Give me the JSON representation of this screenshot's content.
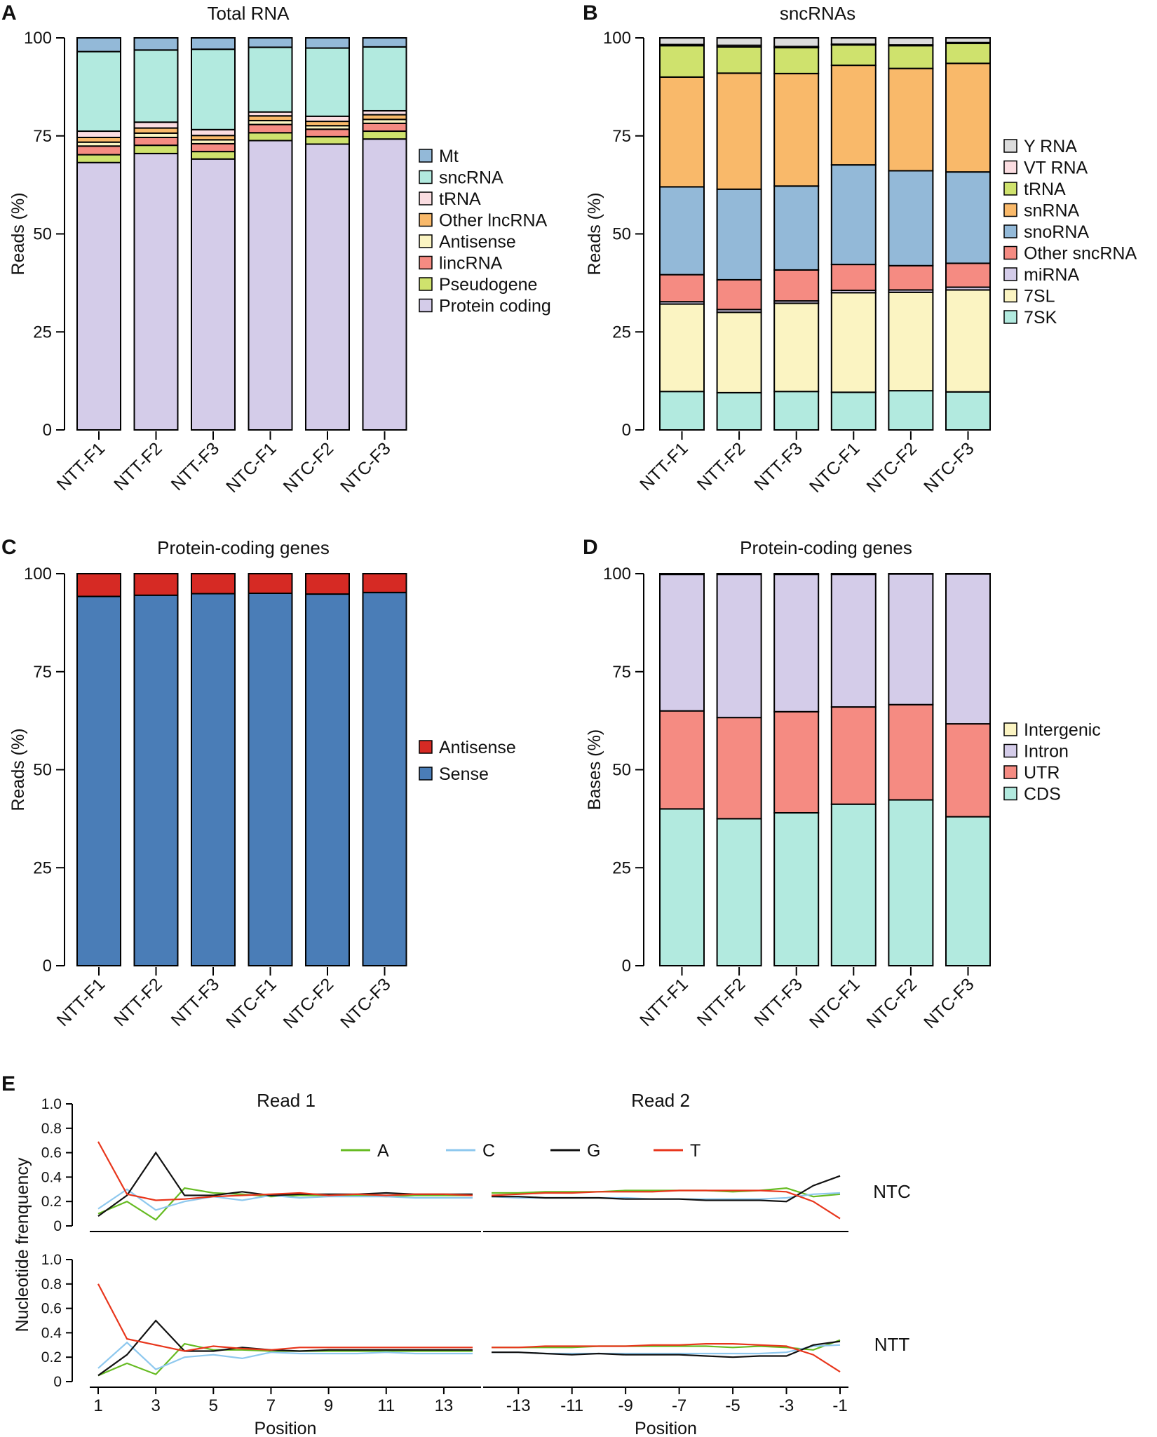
{
  "panels": [
    {
      "letter": "A",
      "chart_data": {
        "type": "bar",
        "stacked": true,
        "title": "Total RNA",
        "ylabel": "Reads (%)",
        "ylim": [
          0,
          100
        ],
        "yticks": [
          0,
          25,
          50,
          75,
          100
        ],
        "categories": [
          "NTT-F1",
          "NTT-F2",
          "NTT-F3",
          "NTC-F1",
          "NTC-F2",
          "NTC-F3"
        ],
        "legend_order": [
          "Mt",
          "sncRNA",
          "tRNA",
          "Other lncRNA",
          "Antisense",
          "lincRNA",
          "Pseudogene",
          "Protein coding"
        ],
        "series": [
          {
            "name": "Protein coding",
            "color": "#d4cce9",
            "values": [
              68.2,
              70.5,
              69.1,
              73.8,
              72.9,
              74.2
            ]
          },
          {
            "name": "Pseudogene",
            "color": "#cfe26d",
            "values": [
              2.0,
              2.1,
              1.9,
              2.0,
              1.9,
              2.0
            ]
          },
          {
            "name": "lincRNA",
            "color": "#f58b82",
            "values": [
              2.2,
              2.0,
              2.0,
              2.1,
              1.9,
              2.0
            ]
          },
          {
            "name": "Antisense",
            "color": "#fbf4c2",
            "values": [
              1.0,
              1.1,
              1.0,
              1.0,
              0.9,
              1.0
            ]
          },
          {
            "name": "Other lncRNA",
            "color": "#f9b96a",
            "values": [
              1.2,
              1.3,
              1.1,
              1.2,
              1.1,
              1.2
            ]
          },
          {
            "name": "tRNA",
            "color": "#fbdde1",
            "values": [
              1.6,
              1.5,
              1.5,
              1.0,
              1.3,
              1.0
            ]
          },
          {
            "name": "sncRNA",
            "color": "#b2eadf",
            "values": [
              20.3,
              18.4,
              20.5,
              16.5,
              17.4,
              16.3
            ]
          },
          {
            "name": "Mt",
            "color": "#93b9d8",
            "values": [
              3.5,
              3.1,
              2.9,
              2.4,
              2.6,
              2.3
            ]
          }
        ]
      }
    },
    {
      "letter": "B",
      "chart_data": {
        "type": "bar",
        "stacked": true,
        "title": "sncRNAs",
        "ylabel": "Reads (%)",
        "ylim": [
          0,
          100
        ],
        "yticks": [
          0,
          25,
          50,
          75,
          100
        ],
        "categories": [
          "NTT-F1",
          "NTT-F2",
          "NTT-F3",
          "NTC-F1",
          "NTC-F2",
          "NTC-F3"
        ],
        "legend_order": [
          "Y RNA",
          "VT RNA",
          "tRNA",
          "snRNA",
          "snoRNA",
          "Other sncRNA",
          "miRNA",
          "7SL",
          "7SK"
        ],
        "series": [
          {
            "name": "7SK",
            "color": "#b2eadf",
            "values": [
              9.8,
              9.5,
              9.8,
              9.6,
              10.0,
              9.7
            ]
          },
          {
            "name": "7SL",
            "color": "#fbf4c2",
            "values": [
              22.3,
              20.5,
              22.5,
              25.4,
              25.1,
              26.0
            ]
          },
          {
            "name": "miRNA",
            "color": "#d4cce9",
            "values": [
              0.6,
              0.7,
              0.6,
              0.6,
              0.6,
              0.7
            ]
          },
          {
            "name": "Other sncRNA",
            "color": "#f58b82",
            "values": [
              6.9,
              7.6,
              7.9,
              6.6,
              6.2,
              6.1
            ]
          },
          {
            "name": "snoRNA",
            "color": "#93b9d8",
            "values": [
              22.4,
              23.1,
              21.4,
              25.4,
              24.2,
              23.3
            ]
          },
          {
            "name": "snRNA",
            "color": "#f9b96a",
            "values": [
              28.0,
              29.6,
              28.7,
              25.4,
              26.1,
              27.7
            ]
          },
          {
            "name": "tRNA",
            "color": "#cfe26d",
            "values": [
              8.0,
              6.7,
              6.6,
              5.2,
              5.8,
              5.1
            ]
          },
          {
            "name": "VT RNA",
            "color": "#fbdde1",
            "values": [
              0.3,
              0.4,
              0.3,
              0.2,
              0.2,
              0.2
            ]
          },
          {
            "name": "Y RNA",
            "color": "#dcdcdc",
            "values": [
              1.7,
              1.9,
              2.2,
              1.6,
              1.8,
              1.2
            ]
          }
        ]
      }
    },
    {
      "letter": "C",
      "chart_data": {
        "type": "bar",
        "stacked": true,
        "title": "Protein-coding genes",
        "ylabel": "Reads (%)",
        "ylim": [
          0,
          100
        ],
        "yticks": [
          0,
          25,
          50,
          75,
          100
        ],
        "categories": [
          "NTT-F1",
          "NTT-F2",
          "NTT-F3",
          "NTC-F1",
          "NTC-F2",
          "NTC-F3"
        ],
        "legend_order": [
          "Antisense",
          "Sense"
        ],
        "series": [
          {
            "name": "Sense",
            "color": "#4a7db7",
            "values": [
              94.2,
              94.5,
              94.9,
              95.0,
              94.8,
              95.2
            ]
          },
          {
            "name": "Antisense",
            "color": "#d62a24",
            "values": [
              5.8,
              5.5,
              5.1,
              5.0,
              5.2,
              4.8
            ]
          }
        ]
      }
    },
    {
      "letter": "D",
      "chart_data": {
        "type": "bar",
        "stacked": true,
        "title": "Protein-coding genes",
        "ylabel": "Bases (%)",
        "ylim": [
          0,
          100
        ],
        "yticks": [
          0,
          25,
          50,
          75,
          100
        ],
        "categories": [
          "NTT-F1",
          "NTT-F2",
          "NTT-F3",
          "NTC-F1",
          "NTC-F2",
          "NTC-F3"
        ],
        "legend_order": [
          "Intergenic",
          "Intron",
          "UTR",
          "CDS"
        ],
        "series": [
          {
            "name": "CDS",
            "color": "#b2eadf",
            "values": [
              40.0,
              37.5,
              39.0,
              41.2,
              42.3,
              38.0
            ]
          },
          {
            "name": "UTR",
            "color": "#f58b82",
            "values": [
              25.0,
              25.8,
              25.8,
              24.8,
              24.3,
              23.7
            ]
          },
          {
            "name": "Intron",
            "color": "#d4cce9",
            "values": [
              34.8,
              36.5,
              35.0,
              33.8,
              33.3,
              38.2
            ]
          },
          {
            "name": "Intergenic",
            "color": "#fbf4c2",
            "values": [
              0.2,
              0.2,
              0.2,
              0.2,
              0.1,
              0.1
            ]
          }
        ]
      }
    }
  ],
  "panel_e": {
    "letter": "E",
    "chart_data": {
      "type": "line",
      "ylabel": "Nucleotide frenquency",
      "xlabel": "Position",
      "col_titles": [
        "Read 1",
        "Read 2"
      ],
      "row_labels": [
        "NTC",
        "NTT"
      ],
      "ylim": [
        0,
        1.0
      ],
      "yticks": [
        "0",
        "0.2",
        "0.4",
        "0.6",
        "0.8",
        "1.0"
      ],
      "read1_x": [
        1,
        2,
        3,
        4,
        5,
        6,
        7,
        8,
        9,
        10,
        11,
        12,
        13,
        14
      ],
      "read1_ticks": [
        "1",
        "3",
        "5",
        "7",
        "9",
        "11",
        "13"
      ],
      "read2_x": [
        -14,
        -13,
        -12,
        -11,
        -10,
        -9,
        -8,
        -7,
        -6,
        -5,
        -4,
        -3,
        -2,
        -1
      ],
      "read2_ticks": [
        "-13",
        "-11",
        "-9",
        "-7",
        "-5",
        "-3",
        "-1"
      ],
      "legend": [
        {
          "name": "A",
          "color": "#66bb22"
        },
        {
          "name": "C",
          "color": "#8ec8ee"
        },
        {
          "name": "G",
          "color": "#111111"
        },
        {
          "name": "T",
          "color": "#e8361c"
        }
      ],
      "rows": [
        {
          "label": "NTC",
          "read1": {
            "A": [
              0.1,
              0.2,
              0.05,
              0.31,
              0.27,
              0.26,
              0.24,
              0.25,
              0.25,
              0.25,
              0.24,
              0.25,
              0.25,
              0.25
            ],
            "C": [
              0.14,
              0.3,
              0.13,
              0.2,
              0.24,
              0.21,
              0.25,
              0.23,
              0.24,
              0.24,
              0.24,
              0.23,
              0.23,
              0.23
            ],
            "G": [
              0.08,
              0.25,
              0.6,
              0.25,
              0.25,
              0.28,
              0.25,
              0.26,
              0.26,
              0.26,
              0.27,
              0.26,
              0.26,
              0.26
            ],
            "T": [
              0.69,
              0.26,
              0.21,
              0.22,
              0.24,
              0.25,
              0.26,
              0.27,
              0.25,
              0.26,
              0.25,
              0.26,
              0.26,
              0.25
            ]
          },
          "read2": {
            "A": [
              0.27,
              0.27,
              0.28,
              0.28,
              0.28,
              0.29,
              0.29,
              0.29,
              0.29,
              0.28,
              0.29,
              0.31,
              0.24,
              0.26
            ],
            "C": [
              0.24,
              0.23,
              0.23,
              0.23,
              0.23,
              0.23,
              0.22,
              0.22,
              0.22,
              0.22,
              0.22,
              0.23,
              0.26,
              0.27
            ],
            "G": [
              0.24,
              0.24,
              0.23,
              0.23,
              0.23,
              0.22,
              0.22,
              0.22,
              0.21,
              0.21,
              0.21,
              0.2,
              0.33,
              0.41
            ],
            "T": [
              0.25,
              0.26,
              0.27,
              0.27,
              0.28,
              0.28,
              0.28,
              0.29,
              0.29,
              0.29,
              0.29,
              0.28,
              0.2,
              0.06
            ]
          }
        },
        {
          "label": "NTT",
          "read1": {
            "A": [
              0.05,
              0.15,
              0.06,
              0.31,
              0.26,
              0.26,
              0.25,
              0.25,
              0.25,
              0.25,
              0.25,
              0.25,
              0.25,
              0.25
            ],
            "C": [
              0.11,
              0.32,
              0.1,
              0.2,
              0.22,
              0.19,
              0.24,
              0.23,
              0.23,
              0.23,
              0.24,
              0.23,
              0.23,
              0.23
            ],
            "G": [
              0.05,
              0.22,
              0.5,
              0.25,
              0.25,
              0.28,
              0.26,
              0.25,
              0.26,
              0.26,
              0.26,
              0.26,
              0.26,
              0.26
            ],
            "T": [
              0.8,
              0.35,
              0.3,
              0.25,
              0.29,
              0.27,
              0.26,
              0.28,
              0.28,
              0.28,
              0.28,
              0.28,
              0.28,
              0.28
            ]
          },
          "read2": {
            "A": [
              0.28,
              0.28,
              0.28,
              0.28,
              0.29,
              0.29,
              0.29,
              0.29,
              0.29,
              0.28,
              0.29,
              0.28,
              0.26,
              0.34
            ],
            "C": [
              0.24,
              0.24,
              0.23,
              0.23,
              0.23,
              0.23,
              0.23,
              0.23,
              0.23,
              0.23,
              0.23,
              0.24,
              0.29,
              0.3
            ],
            "G": [
              0.24,
              0.24,
              0.23,
              0.22,
              0.23,
              0.22,
              0.22,
              0.22,
              0.21,
              0.2,
              0.21,
              0.21,
              0.3,
              0.33
            ],
            "T": [
              0.28,
              0.28,
              0.29,
              0.29,
              0.29,
              0.29,
              0.3,
              0.3,
              0.31,
              0.31,
              0.3,
              0.29,
              0.22,
              0.08
            ]
          }
        }
      ]
    }
  }
}
